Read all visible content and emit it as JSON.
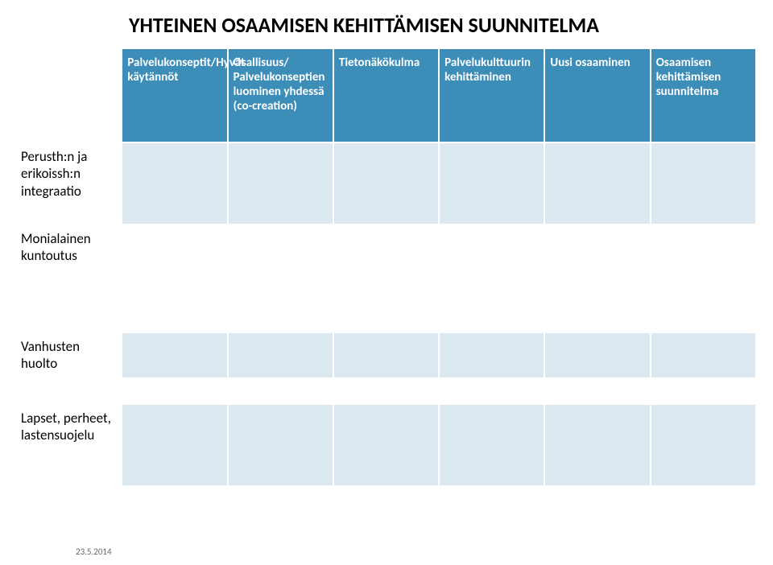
{
  "title": "YHTEINEN OSAAMISEN KEHITTÄMISEN SUUNNITELMA",
  "headers": {
    "h0": "",
    "h1": "Palvelukonseptit/Hyvät käytännöt",
    "h2": "Osallisuus/ Palvelukonseptien luominen yhdessä (co-creation)",
    "h3": "Tietonäkökulma",
    "h4": "Palvelukulttuurin kehittäminen",
    "h5": "Uusi osaaminen",
    "h6": "Osaamisen kehittämisen suunnitelma"
  },
  "rows": {
    "r1_label": "Perusth:n ja erikoissh:n integraatio",
    "r2_label": "Monialainen kuntoutus",
    "r3_label": "Vanhusten huolto",
    "r4_label": "Lapset, perheet, lastensuojelu"
  },
  "footer_date": "23.5.2014"
}
